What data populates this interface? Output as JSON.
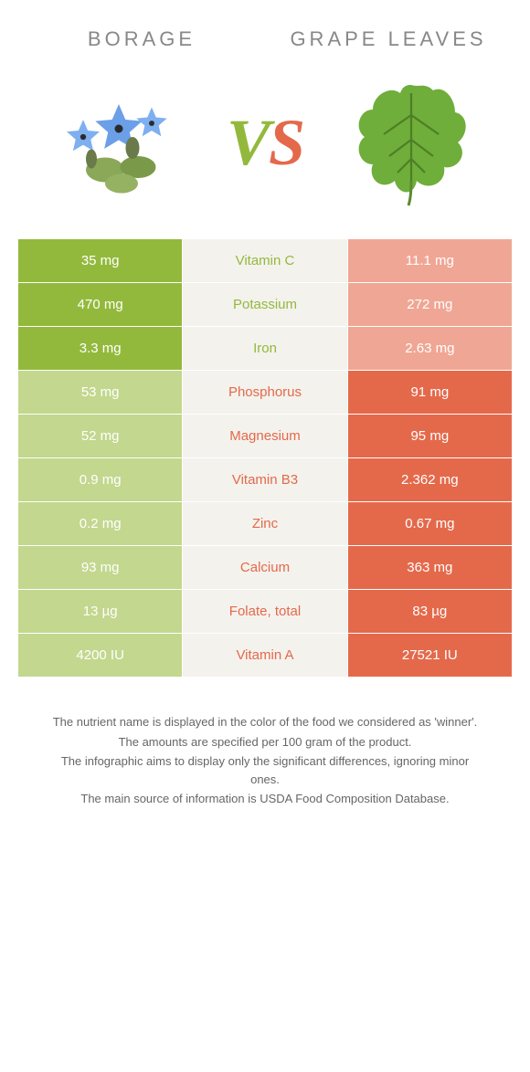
{
  "colors": {
    "left_full": "#93b93c",
    "left_pale": "#c3d78e",
    "right_full": "#e4694b",
    "right_pale": "#f0a694",
    "mid_text_left": "#93b93c",
    "mid_text_right": "#e4694b",
    "background": "#ffffff"
  },
  "header": {
    "left_title": "BORAGE",
    "right_title": "GRAPE LEAVES"
  },
  "vs": {
    "v": "V",
    "s": "S"
  },
  "rows": [
    {
      "nutrient": "Vitamin C",
      "left": "35 mg",
      "right": "11.1 mg",
      "winner": "left"
    },
    {
      "nutrient": "Potassium",
      "left": "470 mg",
      "right": "272 mg",
      "winner": "left"
    },
    {
      "nutrient": "Iron",
      "left": "3.3 mg",
      "right": "2.63 mg",
      "winner": "left"
    },
    {
      "nutrient": "Phosphorus",
      "left": "53 mg",
      "right": "91 mg",
      "winner": "right"
    },
    {
      "nutrient": "Magnesium",
      "left": "52 mg",
      "right": "95 mg",
      "winner": "right"
    },
    {
      "nutrient": "Vitamin B3",
      "left": "0.9 mg",
      "right": "2.362 mg",
      "winner": "right"
    },
    {
      "nutrient": "Zinc",
      "left": "0.2 mg",
      "right": "0.67 mg",
      "winner": "right"
    },
    {
      "nutrient": "Calcium",
      "left": "93 mg",
      "right": "363 mg",
      "winner": "right"
    },
    {
      "nutrient": "Folate, total",
      "left": "13 µg",
      "right": "83 µg",
      "winner": "right"
    },
    {
      "nutrient": "Vitamin A",
      "left": "4200 IU",
      "right": "27521 IU",
      "winner": "right"
    }
  ],
  "footnotes": [
    "The nutrient name is displayed in the color of the food we considered as 'winner'.",
    "The amounts are specified per 100 gram of the product.",
    "The infographic aims to display only the significant differences, ignoring minor ones.",
    "The main source of information is USDA Food Composition Database."
  ]
}
